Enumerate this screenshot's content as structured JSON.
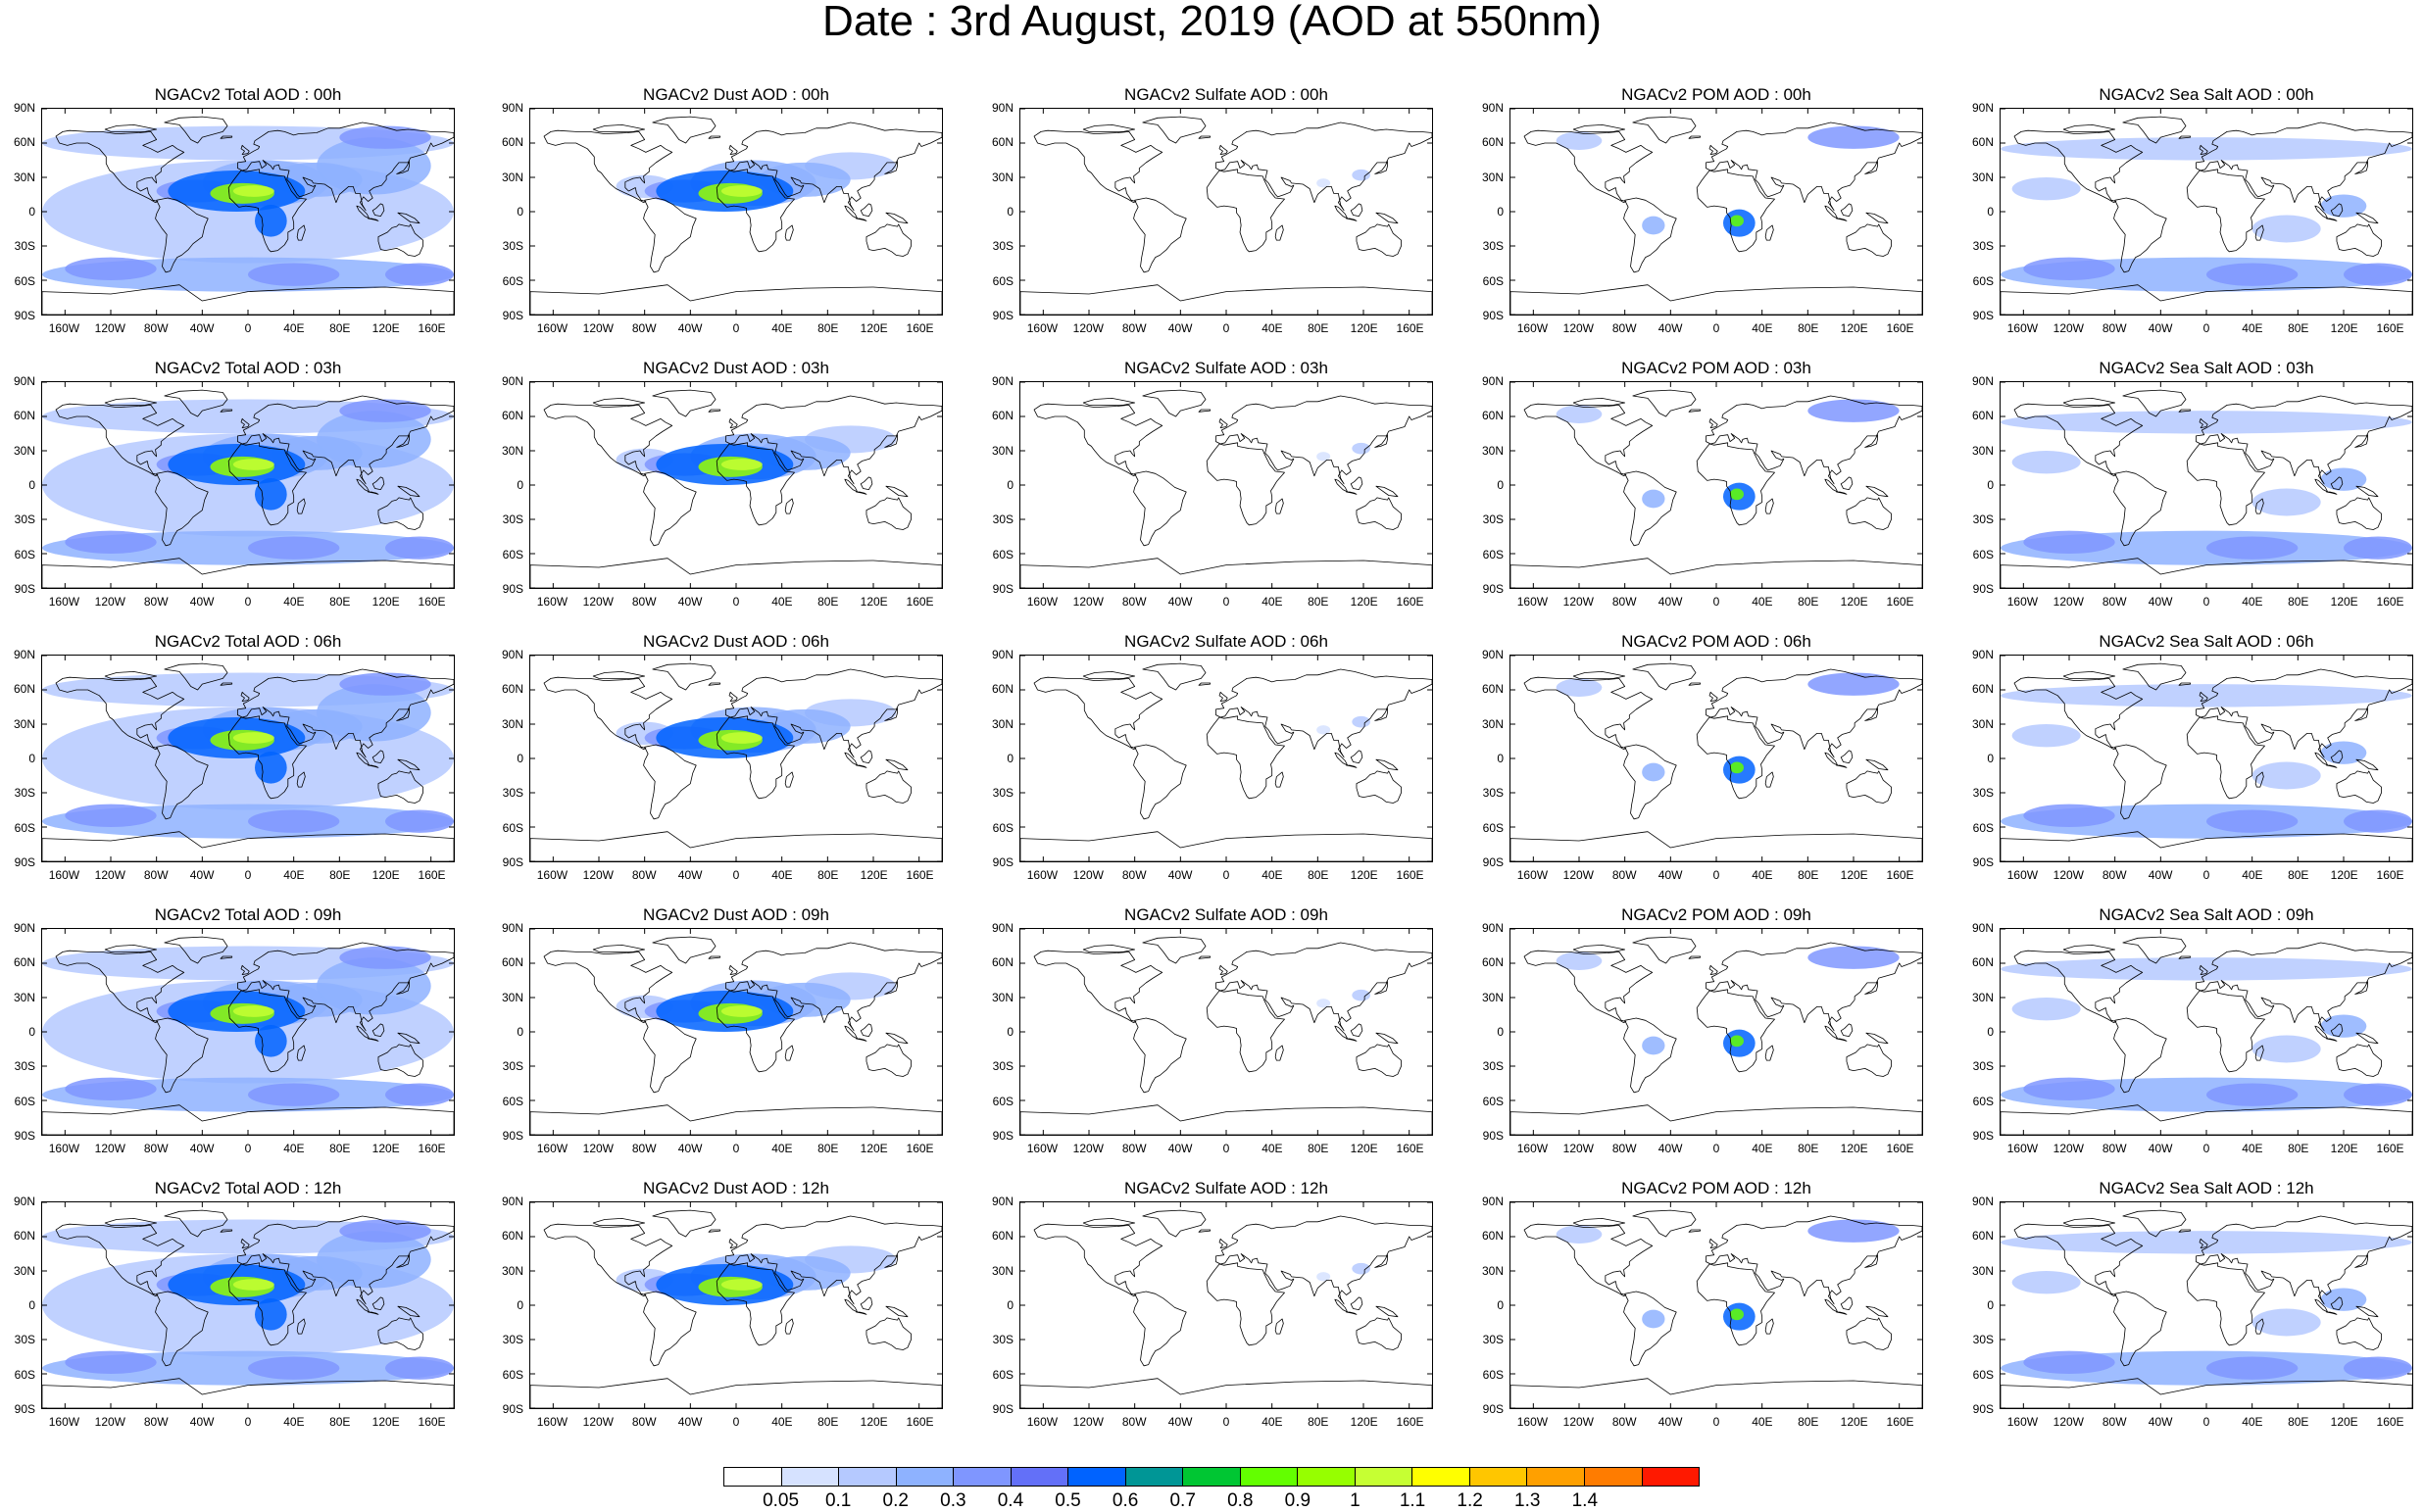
{
  "title": "Date : 3rd August, 2019 (AOD at 550nm)",
  "species": [
    "total",
    "dust",
    "sulfate",
    "pom",
    "seasalt"
  ],
  "panel_titles": [
    [
      "NGACv2 Total AOD : 00h",
      "NGACv2 Dust AOD : 00h",
      "NGACv2 Sulfate AOD : 00h",
      "NGACv2 POM AOD : 00h",
      "NGACv2 Sea Salt AOD : 00h"
    ],
    [
      "NGACv2 Total AOD : 03h",
      "NGACv2 Dust AOD : 03h",
      "NGACv2 Sulfate AOD : 03h",
      "NGACv2 POM AOD : 03h",
      "NGACv2 Sea Salt AOD : 03h"
    ],
    [
      "NGACv2 Total AOD : 06h",
      "NGACv2 Dust AOD : 06h",
      "NGACv2 Sulfate AOD : 06h",
      "NGACv2 POM AOD : 06h",
      "NGACv2 Sea Salt AOD : 06h"
    ],
    [
      "NGACv2 Total AOD : 09h",
      "NGACv2 Dust AOD : 09h",
      "NGACv2 Sulfate AOD : 09h",
      "NGACv2 POM AOD : 09h",
      "NGACv2 Sea Salt  AOD : 09h"
    ],
    [
      "NGACv2 Total AOD  : 12h",
      "NGACv2 Dust AOD : 12h",
      "NGACv2 Sulfate AOD : 12h",
      "NGACv2 POM  AOD : 12h",
      "NGACv2 Sea Salt  AOD : 12h"
    ]
  ],
  "lat_labels": [
    "90N",
    "60N",
    "30N",
    "0",
    "30S",
    "60S",
    "90S"
  ],
  "lat_values": [
    90,
    60,
    30,
    0,
    -30,
    -60,
    -90
  ],
  "lon_labels": [
    "160W",
    "120W",
    "80W",
    "40W",
    "0",
    "40E",
    "80E",
    "120E",
    "160E"
  ],
  "lon_values": [
    -160,
    -120,
    -80,
    -40,
    0,
    40,
    80,
    120,
    160
  ],
  "colorbar": {
    "labels": [
      "0.05",
      "0.1",
      "0.2",
      "0.3",
      "0.4",
      "0.5",
      "0.6",
      "0.7",
      "0.8",
      "0.9",
      "1",
      "1.1",
      "1.2",
      "1.3",
      "1.4"
    ],
    "colors": [
      "#ffffff",
      "#d6e2ff",
      "#b5c9ff",
      "#8eb2ff",
      "#7f96ff",
      "#6370f8",
      "#0063ff",
      "#009696",
      "#00c633",
      "#63ff00",
      "#96ff00",
      "#c6ff33",
      "#ffff00",
      "#ffc600",
      "#ffa000",
      "#ff7c00",
      "#ff1900"
    ]
  },
  "land_polygons": [
    [
      [
        -168,
        66
      ],
      [
        -162,
        70
      ],
      [
        -156,
        71
      ],
      [
        -140,
        70
      ],
      [
        -128,
        70
      ],
      [
        -115,
        68
      ],
      [
        -95,
        69
      ],
      [
        -85,
        70
      ],
      [
        -80,
        63
      ],
      [
        -92,
        58
      ],
      [
        -85,
        55
      ],
      [
        -79,
        52
      ],
      [
        -66,
        58
      ],
      [
        -62,
        55
      ],
      [
        -56,
        52
      ],
      [
        -64,
        47
      ],
      [
        -70,
        43
      ],
      [
        -76,
        38
      ],
      [
        -76,
        35
      ],
      [
        -81,
        31
      ],
      [
        -80,
        25
      ],
      [
        -82,
        27
      ],
      [
        -84,
        30
      ],
      [
        -90,
        29
      ],
      [
        -97,
        26
      ],
      [
        -97,
        21
      ],
      [
        -94,
        18
      ],
      [
        -88,
        21
      ],
      [
        -87,
        16
      ],
      [
        -83,
        10
      ],
      [
        -79,
        9
      ],
      [
        -81,
        8
      ],
      [
        -86,
        11
      ],
      [
        -92,
        14
      ],
      [
        -105,
        20
      ],
      [
        -110,
        24
      ],
      [
        -115,
        30
      ],
      [
        -118,
        34
      ],
      [
        -121,
        36
      ],
      [
        -124,
        42
      ],
      [
        -124,
        48
      ],
      [
        -130,
        55
      ],
      [
        -140,
        60
      ],
      [
        -150,
        60
      ],
      [
        -158,
        58
      ],
      [
        -165,
        60
      ]
    ],
    [
      [
        -73,
        78
      ],
      [
        -60,
        82
      ],
      [
        -40,
        83
      ],
      [
        -22,
        81
      ],
      [
        -18,
        75
      ],
      [
        -22,
        70
      ],
      [
        -40,
        65
      ],
      [
        -44,
        60
      ],
      [
        -50,
        63
      ],
      [
        -55,
        70
      ],
      [
        -60,
        76
      ]
    ],
    [
      [
        -125,
        72
      ],
      [
        -115,
        75
      ],
      [
        -100,
        76
      ],
      [
        -90,
        74
      ],
      [
        -80,
        72
      ],
      [
        -90,
        70
      ],
      [
        -105,
        70
      ],
      [
        -120,
        70
      ]
    ],
    [
      [
        -80,
        10
      ],
      [
        -75,
        11
      ],
      [
        -70,
        12
      ],
      [
        -62,
        10
      ],
      [
        -55,
        6
      ],
      [
        -50,
        2
      ],
      [
        -45,
        -2
      ],
      [
        -35,
        -6
      ],
      [
        -38,
        -13
      ],
      [
        -40,
        -22
      ],
      [
        -48,
        -28
      ],
      [
        -52,
        -33
      ],
      [
        -58,
        -38
      ],
      [
        -62,
        -40
      ],
      [
        -65,
        -45
      ],
      [
        -68,
        -52
      ],
      [
        -72,
        -53
      ],
      [
        -75,
        -48
      ],
      [
        -74,
        -40
      ],
      [
        -72,
        -30
      ],
      [
        -71,
        -20
      ],
      [
        -75,
        -15
      ],
      [
        -81,
        -6
      ],
      [
        -80,
        -2
      ],
      [
        -77,
        4
      ]
    ],
    [
      [
        -9,
        38
      ],
      [
        -9,
        43
      ],
      [
        -2,
        44
      ],
      [
        -4,
        48
      ],
      [
        0,
        50
      ],
      [
        5,
        53
      ],
      [
        9,
        55
      ],
      [
        10,
        57
      ],
      [
        5,
        59
      ],
      [
        6,
        62
      ],
      [
        12,
        66
      ],
      [
        18,
        70
      ],
      [
        26,
        71
      ],
      [
        32,
        70
      ],
      [
        40,
        67
      ],
      [
        44,
        68
      ],
      [
        60,
        69
      ],
      [
        70,
        73
      ],
      [
        80,
        73
      ],
      [
        100,
        78
      ],
      [
        112,
        76
      ],
      [
        130,
        71
      ],
      [
        140,
        72
      ],
      [
        160,
        70
      ],
      [
        170,
        70
      ],
      [
        180,
        69
      ],
      [
        180,
        65
      ],
      [
        170,
        60
      ],
      [
        162,
        57
      ],
      [
        160,
        60
      ],
      [
        156,
        51
      ],
      [
        142,
        47
      ],
      [
        140,
        43
      ],
      [
        132,
        43
      ],
      [
        128,
        38
      ],
      [
        126,
        35
      ],
      [
        121,
        31
      ],
      [
        121,
        28
      ],
      [
        117,
        23
      ],
      [
        110,
        21
      ],
      [
        106,
        18
      ],
      [
        109,
        12
      ],
      [
        105,
        9
      ],
      [
        101,
        13
      ],
      [
        98,
        8
      ],
      [
        103,
        1
      ],
      [
        100,
        6
      ],
      [
        98,
        16
      ],
      [
        94,
        16
      ],
      [
        92,
        22
      ],
      [
        88,
        22
      ],
      [
        80,
        15
      ],
      [
        77,
        8
      ],
      [
        73,
        20
      ],
      [
        67,
        24
      ],
      [
        57,
        25
      ],
      [
        56,
        27
      ],
      [
        48,
        30
      ],
      [
        52,
        24
      ],
      [
        57,
        22
      ],
      [
        59,
        23
      ],
      [
        56,
        17
      ],
      [
        51,
        15
      ],
      [
        45,
        13
      ],
      [
        43,
        15
      ],
      [
        37,
        25
      ],
      [
        34,
        28
      ],
      [
        35,
        32
      ],
      [
        36,
        36
      ],
      [
        28,
        37
      ],
      [
        27,
        41
      ],
      [
        23,
        40
      ],
      [
        22,
        37
      ],
      [
        20,
        40
      ],
      [
        13,
        45
      ],
      [
        16,
        41
      ],
      [
        12,
        38
      ],
      [
        10,
        44
      ],
      [
        3,
        43
      ],
      [
        -1,
        37
      ],
      [
        -5,
        36
      ]
    ],
    [
      [
        -17,
        21
      ],
      [
        -16,
        12
      ],
      [
        -12,
        8
      ],
      [
        -8,
        4
      ],
      [
        -2,
        5
      ],
      [
        6,
        4
      ],
      [
        9,
        3
      ],
      [
        9,
        -1
      ],
      [
        12,
        -5
      ],
      [
        13,
        -12
      ],
      [
        12,
        -18
      ],
      [
        15,
        -27
      ],
      [
        18,
        -33
      ],
      [
        20,
        -35
      ],
      [
        26,
        -34
      ],
      [
        32,
        -29
      ],
      [
        35,
        -24
      ],
      [
        35,
        -18
      ],
      [
        40,
        -15
      ],
      [
        40,
        -10
      ],
      [
        39,
        -5
      ],
      [
        41,
        -2
      ],
      [
        44,
        3
      ],
      [
        51,
        11
      ],
      [
        43,
        12
      ],
      [
        38,
        18
      ],
      [
        33,
        28
      ],
      [
        32,
        31
      ],
      [
        20,
        32
      ],
      [
        10,
        34
      ],
      [
        10,
        37
      ],
      [
        -2,
        35
      ],
      [
        -6,
        36
      ],
      [
        -10,
        31
      ],
      [
        -13,
        27
      ]
    ],
    [
      [
        114,
        -22
      ],
      [
        114,
        -26
      ],
      [
        116,
        -33
      ],
      [
        120,
        -34
      ],
      [
        130,
        -32
      ],
      [
        136,
        -35
      ],
      [
        140,
        -38
      ],
      [
        146,
        -39
      ],
      [
        150,
        -37
      ],
      [
        153,
        -30
      ],
      [
        153,
        -25
      ],
      [
        146,
        -19
      ],
      [
        142,
        -11
      ],
      [
        141,
        -13
      ],
      [
        136,
        -12
      ],
      [
        132,
        -11
      ],
      [
        130,
        -13
      ],
      [
        126,
        -14
      ],
      [
        122,
        -18
      ]
    ],
    [
      [
        95,
        5
      ],
      [
        98,
        4
      ],
      [
        104,
        -2
      ],
      [
        106,
        -6
      ],
      [
        102,
        -4
      ],
      [
        97,
        1
      ]
    ],
    [
      [
        105,
        -6
      ],
      [
        110,
        -7
      ],
      [
        114,
        -8
      ],
      [
        112,
        -7
      ],
      [
        108,
        -6
      ]
    ],
    [
      [
        109,
        1
      ],
      [
        111,
        -3
      ],
      [
        116,
        -4
      ],
      [
        119,
        1
      ],
      [
        118,
        6
      ],
      [
        116,
        7
      ],
      [
        112,
        3
      ]
    ],
    [
      [
        131,
        -1
      ],
      [
        138,
        -2
      ],
      [
        146,
        -6
      ],
      [
        150,
        -10
      ],
      [
        142,
        -9
      ],
      [
        135,
        -4
      ]
    ],
    [
      [
        44,
        -25
      ],
      [
        43,
        -22
      ],
      [
        44,
        -16
      ],
      [
        49,
        -12
      ],
      [
        50,
        -16
      ],
      [
        47,
        -25
      ]
    ],
    [
      [
        -5,
        50
      ],
      [
        0,
        51
      ],
      [
        1,
        53
      ],
      [
        -3,
        56
      ],
      [
        -5,
        58
      ],
      [
        -6,
        55
      ],
      [
        -3,
        53
      ]
    ],
    [
      [
        130,
        33
      ],
      [
        135,
        34
      ],
      [
        140,
        36
      ],
      [
        141,
        40
      ],
      [
        141,
        44
      ],
      [
        139,
        40
      ],
      [
        136,
        36
      ],
      [
        132,
        34
      ]
    ],
    [
      [
        -24,
        64
      ],
      [
        -14,
        65
      ],
      [
        -14,
        66
      ],
      [
        -22,
        66
      ]
    ],
    [
      [
        -180,
        -70
      ],
      [
        -120,
        -72
      ],
      [
        -60,
        -64
      ],
      [
        -40,
        -78
      ],
      [
        0,
        -70
      ],
      [
        60,
        -67
      ],
      [
        120,
        -66
      ],
      [
        180,
        -70
      ],
      [
        180,
        -90
      ],
      [
        -180,
        -90
      ]
    ]
  ],
  "aod_fields": {
    "total": [
      {
        "lon": -5,
        "lat": 16,
        "rx": 28,
        "ry": 9,
        "v": 0.9
      },
      {
        "lon": 5,
        "lat": 18,
        "rx": 18,
        "ry": 5,
        "v": 1.0
      },
      {
        "lon": -10,
        "lat": 18,
        "rx": 60,
        "ry": 18,
        "v": 0.5
      },
      {
        "lon": -45,
        "lat": 18,
        "rx": 35,
        "ry": 10,
        "v": 0.3
      },
      {
        "lon": 20,
        "lat": -8,
        "rx": 14,
        "ry": 14,
        "v": 0.5
      },
      {
        "lon": 15,
        "lat": 25,
        "rx": 55,
        "ry": 20,
        "v": 0.2
      },
      {
        "lon": 60,
        "lat": 28,
        "rx": 40,
        "ry": 15,
        "v": 0.2
      },
      {
        "lon": 110,
        "lat": 40,
        "rx": 50,
        "ry": 25,
        "v": 0.2
      },
      {
        "lon": 0,
        "lat": 0,
        "rx": 180,
        "ry": 45,
        "v": 0.1
      },
      {
        "lon": 0,
        "lat": -55,
        "rx": 180,
        "ry": 15,
        "v": 0.2
      },
      {
        "lon": -120,
        "lat": -50,
        "rx": 40,
        "ry": 10,
        "v": 0.3
      },
      {
        "lon": 40,
        "lat": -55,
        "rx": 40,
        "ry": 10,
        "v": 0.3
      },
      {
        "lon": 150,
        "lat": -55,
        "rx": 30,
        "ry": 10,
        "v": 0.3
      },
      {
        "lon": 0,
        "lat": 60,
        "rx": 180,
        "ry": 15,
        "v": 0.1
      },
      {
        "lon": 120,
        "lat": 65,
        "rx": 40,
        "ry": 10,
        "v": 0.3
      }
    ],
    "dust": [
      {
        "lon": -5,
        "lat": 16,
        "rx": 28,
        "ry": 9,
        "v": 0.9
      },
      {
        "lon": 5,
        "lat": 18,
        "rx": 18,
        "ry": 5,
        "v": 1.0
      },
      {
        "lon": -10,
        "lat": 18,
        "rx": 60,
        "ry": 18,
        "v": 0.5
      },
      {
        "lon": -45,
        "lat": 18,
        "rx": 35,
        "ry": 10,
        "v": 0.3
      },
      {
        "lon": 15,
        "lat": 25,
        "rx": 55,
        "ry": 20,
        "v": 0.2
      },
      {
        "lon": 60,
        "lat": 28,
        "rx": 40,
        "ry": 15,
        "v": 0.2
      },
      {
        "lon": 100,
        "lat": 40,
        "rx": 40,
        "ry": 12,
        "v": 0.1
      },
      {
        "lon": -80,
        "lat": 22,
        "rx": 25,
        "ry": 10,
        "v": 0.1
      }
    ],
    "sulfate": [
      {
        "lon": 118,
        "lat": 32,
        "rx": 8,
        "ry": 5,
        "v": 0.1
      },
      {
        "lon": 85,
        "lat": 25,
        "rx": 6,
        "ry": 4,
        "v": 0.05
      }
    ],
    "pom": [
      {
        "lon": 20,
        "lat": -10,
        "rx": 14,
        "ry": 12,
        "v": 0.5
      },
      {
        "lon": 18,
        "lat": -8,
        "rx": 6,
        "ry": 5,
        "v": 0.8
      },
      {
        "lon": -55,
        "lat": -12,
        "rx": 10,
        "ry": 8,
        "v": 0.2
      },
      {
        "lon": 120,
        "lat": 65,
        "rx": 40,
        "ry": 10,
        "v": 0.3
      },
      {
        "lon": -120,
        "lat": 62,
        "rx": 20,
        "ry": 8,
        "v": 0.1
      }
    ],
    "seasalt": [
      {
        "lon": 0,
        "lat": -55,
        "rx": 180,
        "ry": 15,
        "v": 0.2
      },
      {
        "lon": -120,
        "lat": -50,
        "rx": 40,
        "ry": 10,
        "v": 0.3
      },
      {
        "lon": 40,
        "lat": -55,
        "rx": 40,
        "ry": 10,
        "v": 0.3
      },
      {
        "lon": 150,
        "lat": -55,
        "rx": 30,
        "ry": 10,
        "v": 0.3
      },
      {
        "lon": 0,
        "lat": 55,
        "rx": 180,
        "ry": 10,
        "v": 0.1
      },
      {
        "lon": -140,
        "lat": 20,
        "rx": 30,
        "ry": 10,
        "v": 0.1
      },
      {
        "lon": 70,
        "lat": -15,
        "rx": 30,
        "ry": 12,
        "v": 0.1
      },
      {
        "lon": 120,
        "lat": 5,
        "rx": 20,
        "ry": 10,
        "v": 0.2
      }
    ]
  }
}
